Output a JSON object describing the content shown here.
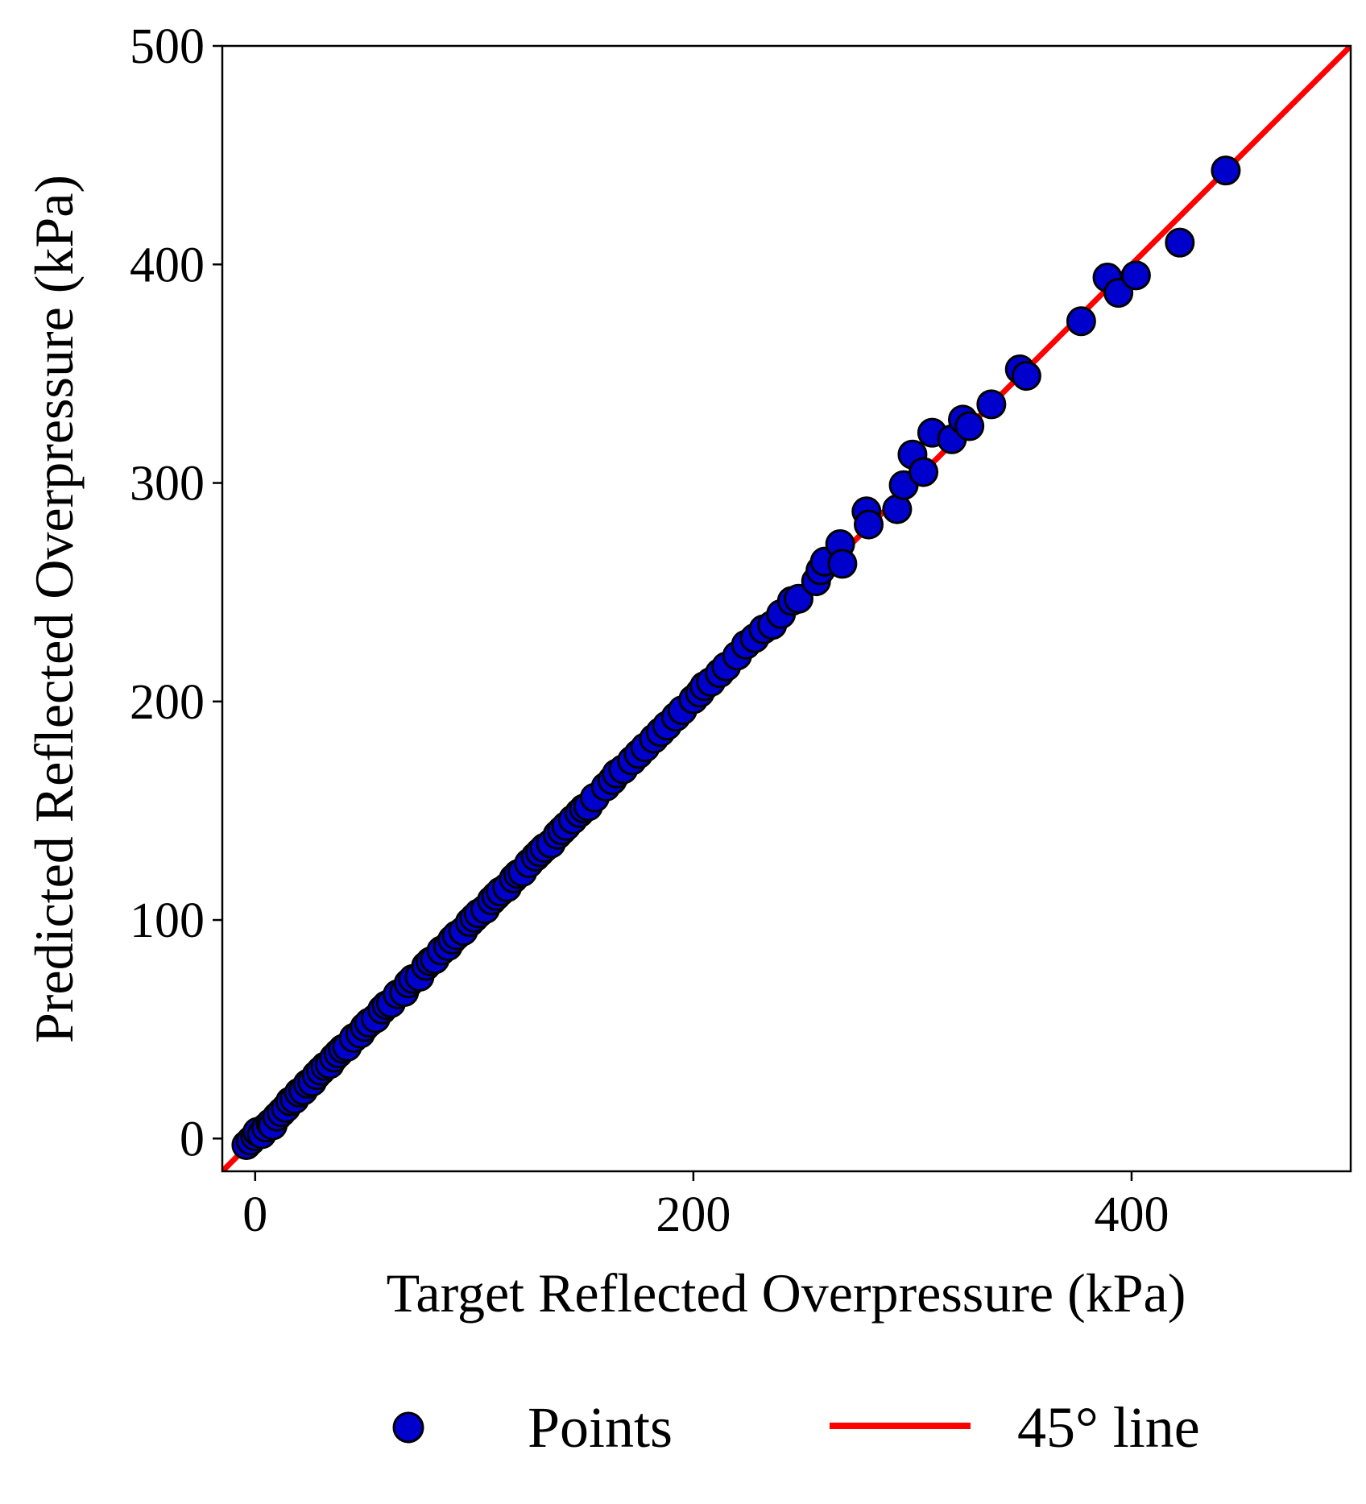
{
  "chart_data": {
    "type": "scatter",
    "title": "",
    "xlabel": "Target Reflected Overpressure (kPa)",
    "ylabel": "Predicted Reflected Overpressure (kPa)",
    "xlim": [
      -15,
      500
    ],
    "ylim": [
      -15,
      500
    ],
    "xticks": [
      0,
      200,
      400
    ],
    "yticks": [
      0,
      100,
      200,
      300,
      400,
      500
    ],
    "grid": false,
    "legend_placement": "bottom-center",
    "colors": {
      "points": "#0000cc",
      "point_edge": "#000000",
      "line": "#ff0000"
    },
    "series": [
      {
        "name": "Points",
        "x": [
          -4,
          -2,
          0,
          1,
          3,
          5,
          7,
          8,
          10,
          12,
          14,
          16,
          18,
          20,
          22,
          24,
          26,
          28,
          30,
          32,
          34,
          36,
          38,
          40,
          42,
          45,
          48,
          50,
          52,
          55,
          58,
          60,
          62,
          65,
          68,
          70,
          72,
          75,
          78,
          80,
          82,
          85,
          88,
          90,
          92,
          95,
          98,
          100,
          102,
          105,
          108,
          110,
          112,
          115,
          118,
          120,
          122,
          125,
          128,
          130,
          132,
          135,
          138,
          140,
          142,
          145,
          148,
          150,
          152,
          155,
          160,
          163,
          165,
          168,
          172,
          175,
          178,
          182,
          185,
          188,
          192,
          195,
          200,
          203,
          205,
          208,
          212,
          215,
          220,
          224,
          228,
          232,
          236,
          240,
          245,
          248,
          256,
          258,
          260,
          267,
          268,
          279,
          280,
          293,
          296,
          300,
          305,
          309,
          318,
          323,
          326,
          336,
          349,
          352,
          377,
          389,
          394,
          402,
          422,
          443
        ],
        "y": [
          -3,
          -1,
          1,
          3,
          2,
          5,
          7,
          6,
          10,
          12,
          14,
          17,
          18,
          21,
          22,
          25,
          26,
          29,
          31,
          33,
          34,
          37,
          39,
          41,
          42,
          46,
          48,
          51,
          53,
          55,
          59,
          61,
          62,
          66,
          67,
          71,
          73,
          74,
          79,
          81,
          82,
          86,
          88,
          91,
          93,
          95,
          99,
          101,
          103,
          105,
          109,
          111,
          113,
          115,
          119,
          121,
          122,
          126,
          129,
          131,
          133,
          135,
          139,
          141,
          143,
          146,
          149,
          151,
          152,
          156,
          161,
          164,
          167,
          169,
          173,
          176,
          179,
          183,
          186,
          189,
          193,
          196,
          201,
          204,
          207,
          209,
          213,
          216,
          221,
          226,
          229,
          233,
          235,
          240,
          246,
          247,
          255,
          260,
          264,
          272,
          263,
          287,
          281,
          288,
          299,
          313,
          305,
          323,
          320,
          329,
          326,
          336,
          352,
          349,
          374,
          394,
          387,
          395,
          410,
          443
        ]
      },
      {
        "name": "45° line",
        "x": [
          -15,
          500
        ],
        "y": [
          -15,
          500
        ]
      }
    ]
  }
}
